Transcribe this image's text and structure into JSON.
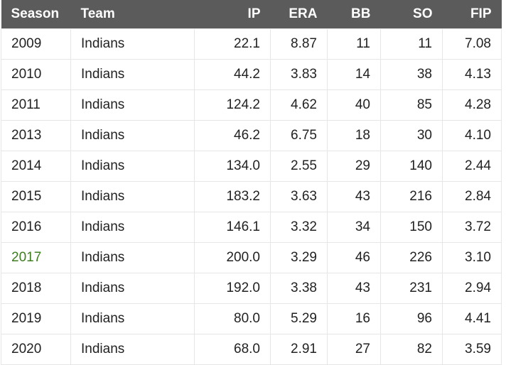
{
  "table": {
    "header": [
      "Season",
      "Team",
      "IP",
      "ERA",
      "BB",
      "SO",
      "FIP"
    ],
    "rows": [
      [
        "2009",
        "Indians",
        "22.1",
        "8.87",
        "11",
        "11",
        "7.08"
      ],
      [
        "2010",
        "Indians",
        "44.2",
        "3.83",
        "14",
        "38",
        "4.13"
      ],
      [
        "2011",
        "Indians",
        "124.2",
        "4.62",
        "40",
        "85",
        "4.28"
      ],
      [
        "2013",
        "Indians",
        "46.2",
        "6.75",
        "18",
        "30",
        "4.10"
      ],
      [
        "2014",
        "Indians",
        "134.0",
        "2.55",
        "29",
        "140",
        "2.44"
      ],
      [
        "2015",
        "Indians",
        "183.2",
        "3.63",
        "43",
        "216",
        "2.84"
      ],
      [
        "2016",
        "Indians",
        "146.1",
        "3.32",
        "34",
        "150",
        "3.72"
      ],
      [
        "2017",
        "Indians",
        "200.0",
        "3.29",
        "46",
        "226",
        "3.10"
      ],
      [
        "2018",
        "Indians",
        "192.0",
        "3.38",
        "43",
        "231",
        "2.94"
      ],
      [
        "2019",
        "Indians",
        "80.0",
        "5.29",
        "16",
        "96",
        "4.41"
      ],
      [
        "2020",
        "Indians",
        "68.0",
        "2.91",
        "27",
        "82",
        "3.59"
      ]
    ]
  }
}
